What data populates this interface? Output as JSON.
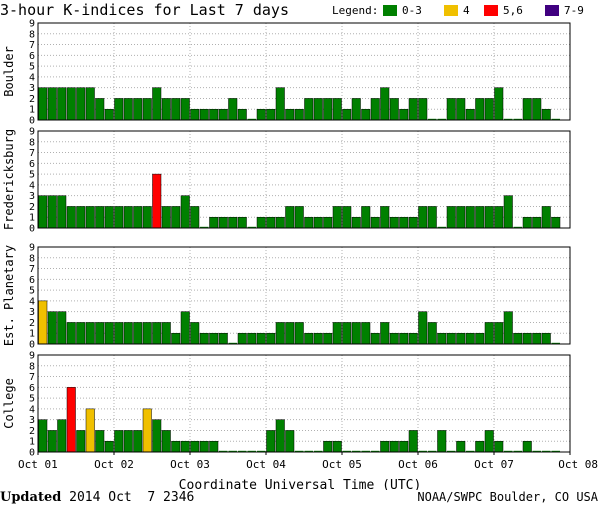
{
  "chart_data": {
    "type": "bar",
    "title": "3-hour K-indices for Last 7 days",
    "xlabel": "Coordinate Universal Time (UTC)",
    "x_ticks": [
      "Oct 01",
      "Oct 02",
      "Oct 03",
      "Oct 04",
      "Oct 05",
      "Oct 06",
      "Oct 07",
      "Oct 08"
    ],
    "y_ticks": [
      "0",
      "1",
      "2",
      "3",
      "4",
      "5",
      "6",
      "7",
      "8",
      "9"
    ],
    "ylim": [
      0,
      9
    ],
    "grid": true,
    "legend": {
      "label": "Legend:",
      "placement": "top-right",
      "items": [
        {
          "label": "0-3",
          "color": "#008000"
        },
        {
          "label": "4",
          "color": "#f0c000"
        },
        {
          "label": "5,6",
          "color": "#ff0000"
        },
        {
          "label": "7-9",
          "color": "#400080"
        }
      ]
    },
    "series": [
      {
        "name": "Boulder",
        "values": [
          3,
          3,
          3,
          3,
          3,
          3,
          2,
          1,
          2,
          2,
          2,
          2,
          3,
          2,
          2,
          2,
          1,
          1,
          1,
          1,
          2,
          1,
          0,
          1,
          1,
          3,
          1,
          1,
          2,
          2,
          2,
          2,
          1,
          2,
          1,
          2,
          3,
          2,
          1,
          2,
          2,
          0,
          0,
          2,
          2,
          1,
          2,
          2,
          3,
          0,
          0,
          2,
          2,
          1,
          0
        ]
      },
      {
        "name": "Fredericksburg",
        "values": [
          3,
          3,
          3,
          2,
          2,
          2,
          2,
          2,
          2,
          2,
          2,
          2,
          5,
          2,
          2,
          3,
          2,
          0,
          1,
          1,
          1,
          1,
          0,
          1,
          1,
          1,
          2,
          2,
          1,
          1,
          1,
          2,
          2,
          1,
          2,
          1,
          2,
          1,
          1,
          1,
          2,
          2,
          0,
          2,
          2,
          2,
          2,
          2,
          2,
          3,
          0,
          1,
          1,
          2,
          1
        ]
      },
      {
        "name": "Est. Planetary",
        "values": [
          4,
          3,
          3,
          2,
          2,
          2,
          2,
          2,
          2,
          2,
          2,
          2,
          2,
          2,
          1,
          3,
          2,
          1,
          1,
          1,
          0,
          1,
          1,
          1,
          1,
          2,
          2,
          2,
          1,
          1,
          1,
          2,
          2,
          2,
          2,
          1,
          2,
          1,
          1,
          1,
          3,
          2,
          1,
          1,
          1,
          1,
          1,
          2,
          2,
          3,
          1,
          1,
          1,
          1,
          0
        ]
      },
      {
        "name": "College",
        "values": [
          3,
          2,
          3,
          6,
          2,
          4,
          2,
          1,
          2,
          2,
          2,
          4,
          3,
          2,
          1,
          1,
          1,
          1,
          1,
          0,
          0,
          0,
          0,
          0,
          2,
          3,
          2,
          0,
          0,
          0,
          1,
          1,
          0,
          0,
          0,
          0,
          1,
          1,
          1,
          2,
          0,
          0,
          2,
          0,
          1,
          0,
          1,
          2,
          1,
          0,
          0,
          1,
          0,
          0,
          0
        ]
      }
    ]
  },
  "footer": {
    "updated_label": "Updated",
    "updated_value": " 2014 Oct  7 2346",
    "credit": "NOAA/SWPC Boulder, CO USA"
  }
}
